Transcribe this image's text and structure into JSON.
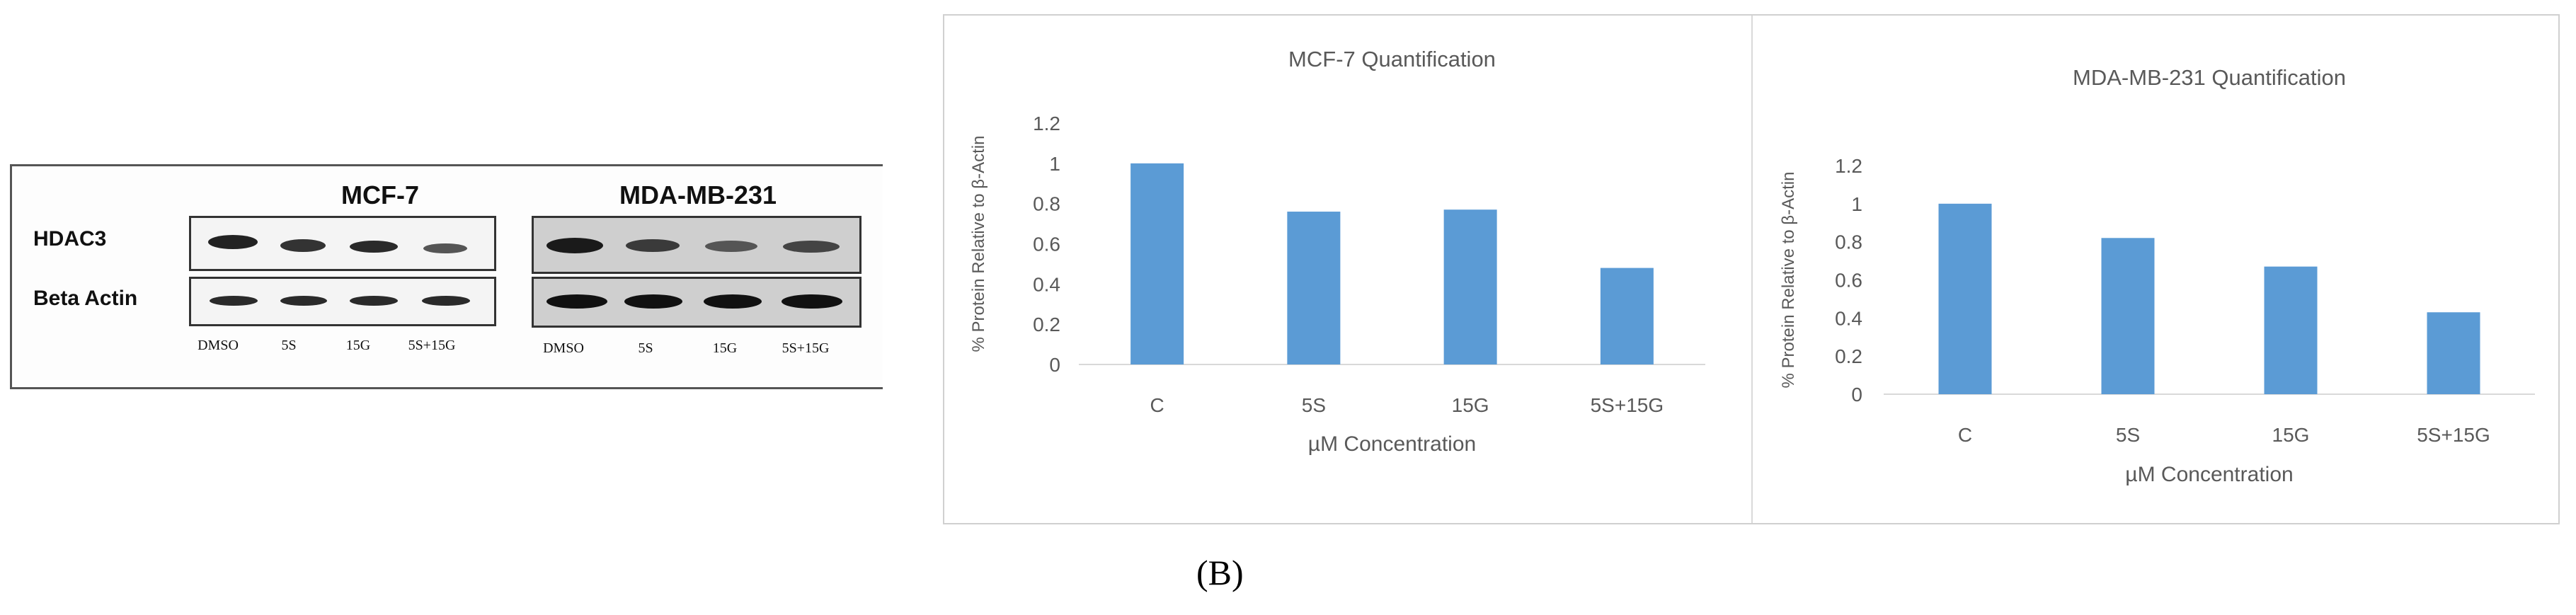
{
  "blot": {
    "cell_lines": [
      "MCF-7",
      "MDA-MB-231"
    ],
    "rows": [
      "HDAC3",
      "Beta Actin"
    ],
    "lanes": [
      "DMSO",
      "5S",
      "15G",
      "5S+15G"
    ]
  },
  "chart_data": [
    {
      "type": "bar",
      "title": "MCF-7 Quantification",
      "xlabel": "µM Concentration",
      "ylabel": "% Protein Relative to β-Actin",
      "categories": [
        "C",
        "5S",
        "15G",
        "5S+15G"
      ],
      "values": [
        1.0,
        0.76,
        0.77,
        0.48
      ],
      "ylim": [
        0,
        1.2
      ],
      "yticks": [
        "0",
        "0.2",
        "0.4",
        "0.6",
        "0.8",
        "1",
        "1.2"
      ],
      "color": "#5b9bd5",
      "grid": false
    },
    {
      "type": "bar",
      "title": "MDA-MB-231 Quantification",
      "xlabel": "µM Concentration",
      "ylabel": "% Protein Relative to β-Actin",
      "categories": [
        "C",
        "5S",
        "15G",
        "5S+15G"
      ],
      "values": [
        1.0,
        0.82,
        0.67,
        0.43
      ],
      "ylim": [
        0,
        1.2
      ],
      "yticks": [
        "0",
        "0.2",
        "0.4",
        "0.6",
        "0.8",
        "1",
        "1.2"
      ],
      "color": "#5b9bd5",
      "grid": false
    }
  ],
  "panel_label": "(B)"
}
